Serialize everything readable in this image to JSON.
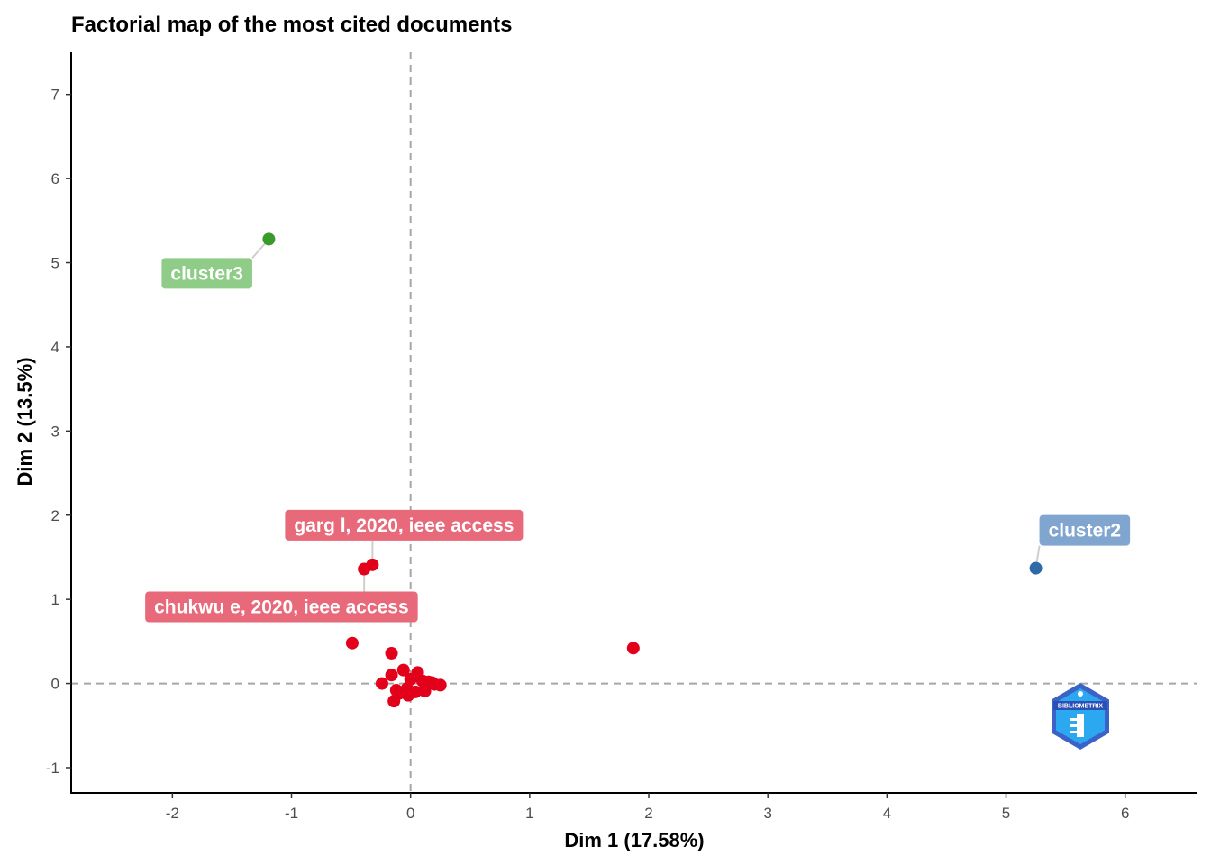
{
  "chart_data": {
    "type": "scatter",
    "title": "Factorial map of the most cited documents",
    "xlabel": "Dim 1 (17.58%)",
    "ylabel": "Dim 2 (13.5%)",
    "xlim": [
      -2.85,
      6.6
    ],
    "ylim": [
      -1.3,
      7.5
    ],
    "xticks": [
      -2,
      -1,
      0,
      1,
      2,
      3,
      4,
      5,
      6
    ],
    "yticks": [
      -1,
      0,
      1,
      2,
      3,
      4,
      5,
      6,
      7
    ],
    "reference_lines": {
      "x": 0,
      "y": 0
    },
    "grid": false,
    "series": [
      {
        "color": "#e3001b",
        "label_color": "#e8697a",
        "points": [
          {
            "x": -0.39,
            "y": 1.36
          },
          {
            "x": -0.32,
            "y": 1.41
          },
          {
            "x": -0.49,
            "y": 0.48
          },
          {
            "x": -0.16,
            "y": 0.36
          },
          {
            "x": 1.87,
            "y": 0.42
          },
          {
            "x": -0.24,
            "y": 0.0
          },
          {
            "x": -0.16,
            "y": 0.1
          },
          {
            "x": -0.06,
            "y": 0.16
          },
          {
            "x": 0.0,
            "y": 0.05
          },
          {
            "x": 0.06,
            "y": 0.13
          },
          {
            "x": 0.1,
            "y": 0.03
          },
          {
            "x": 0.18,
            "y": 0.01
          },
          {
            "x": 0.25,
            "y": -0.02
          },
          {
            "x": -0.12,
            "y": -0.08
          },
          {
            "x": -0.03,
            "y": -0.06
          },
          {
            "x": 0.04,
            "y": -0.1
          },
          {
            "x": 0.12,
            "y": -0.09
          },
          {
            "x": -0.14,
            "y": -0.21
          },
          {
            "x": -0.02,
            "y": -0.14
          },
          {
            "x": 0.15,
            "y": 0.02
          },
          {
            "x": 0.2,
            "y": -0.01
          },
          {
            "x": -0.1,
            "y": -0.12
          }
        ],
        "labels": [
          {
            "text": "garg l, 2020, ieee access",
            "x": -0.32,
            "y": 1.41
          },
          {
            "text": "chukwu e, 2020, ieee access",
            "x": -0.39,
            "y": 1.36
          }
        ]
      },
      {
        "color": "#2e6aa6",
        "label_color": "#80a6cf",
        "points": [
          {
            "x": 5.25,
            "y": 1.37
          }
        ],
        "labels": [
          {
            "text": "cluster2",
            "x": 5.25,
            "y": 1.37
          }
        ]
      },
      {
        "color": "#3a9a2c",
        "label_color": "#8ecc88",
        "points": [
          {
            "x": -1.19,
            "y": 5.28
          }
        ],
        "labels": [
          {
            "text": "cluster3",
            "x": -1.19,
            "y": 5.28
          }
        ]
      }
    ]
  },
  "logo": {
    "text": "BIBLIOMETRIX",
    "color": "#2a78e0",
    "icon": "bibliometrix-logo-icon"
  }
}
